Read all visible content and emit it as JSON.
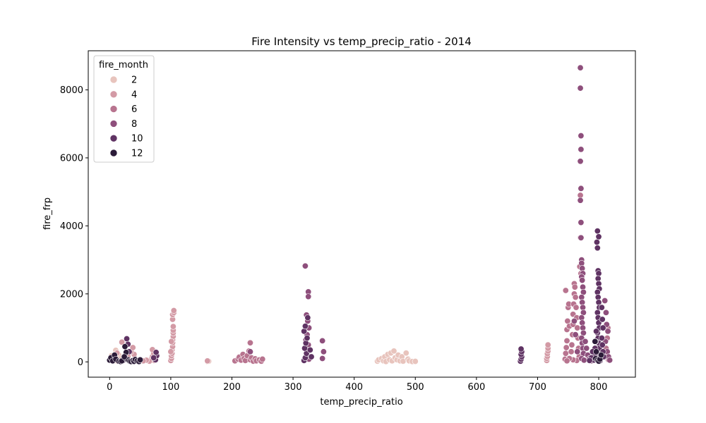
{
  "chart_data": {
    "type": "scatter",
    "title": "Fire Intensity vs temp_precip_ratio - 2014",
    "xlabel": "temp_precip_ratio",
    "ylabel": "fire_frp",
    "xlim": [
      -35,
      860
    ],
    "ylim": [
      -450,
      9150
    ],
    "xticks": [
      0,
      100,
      200,
      300,
      400,
      500,
      600,
      700,
      800
    ],
    "yticks": [
      0,
      2000,
      4000,
      6000,
      8000
    ],
    "grid": false,
    "legend": {
      "title": "fire_month",
      "placement": "top-left",
      "entries": [
        {
          "label": "2",
          "color": "#e8c4bd"
        },
        {
          "label": "4",
          "color": "#d39aa5"
        },
        {
          "label": "6",
          "color": "#b8748f"
        },
        {
          "label": "8",
          "color": "#8e4f7c"
        },
        {
          "label": "10",
          "color": "#5f3363"
        },
        {
          "label": "12",
          "color": "#2b1b38"
        }
      ]
    },
    "series": [
      {
        "name": "2",
        "color": "#e8c4bd",
        "points": [
          [
            438,
            20
          ],
          [
            440,
            60
          ],
          [
            445,
            100
          ],
          [
            448,
            30
          ],
          [
            450,
            150
          ],
          [
            452,
            10
          ],
          [
            455,
            220
          ],
          [
            458,
            60
          ],
          [
            460,
            260
          ],
          [
            462,
            30
          ],
          [
            465,
            320
          ],
          [
            467,
            120
          ],
          [
            470,
            60
          ],
          [
            472,
            200
          ],
          [
            475,
            30
          ],
          [
            478,
            150
          ],
          [
            480,
            20
          ],
          [
            485,
            260
          ],
          [
            488,
            80
          ],
          [
            490,
            30
          ],
          [
            495,
            10
          ],
          [
            500,
            15
          ],
          [
            5,
            120
          ],
          [
            8,
            60
          ],
          [
            12,
            30
          ],
          [
            15,
            200
          ],
          [
            18,
            90
          ],
          [
            22,
            40
          ],
          [
            10,
            340
          ],
          [
            3,
            180
          ],
          [
            160,
            10
          ],
          [
            162,
            20
          ]
        ]
      },
      {
        "name": "4",
        "color": "#d39aa5",
        "points": [
          [
            100,
            40
          ],
          [
            101,
            100
          ],
          [
            101,
            180
          ],
          [
            102,
            250
          ],
          [
            102,
            350
          ],
          [
            103,
            450
          ],
          [
            103,
            560
          ],
          [
            103,
            650
          ],
          [
            104,
            750
          ],
          [
            104,
            850
          ],
          [
            104,
            930
          ],
          [
            104,
            1040
          ],
          [
            103,
            1250
          ],
          [
            103,
            1390
          ],
          [
            105,
            1450
          ],
          [
            105,
            1510
          ],
          [
            100,
            300
          ],
          [
            101,
            600
          ],
          [
            68,
            80
          ],
          [
            70,
            160
          ],
          [
            72,
            250
          ],
          [
            70,
            360
          ],
          [
            73,
            40
          ],
          [
            65,
            20
          ],
          [
            60,
            50
          ],
          [
            55,
            30
          ],
          [
            40,
            220
          ],
          [
            35,
            300
          ],
          [
            38,
            420
          ],
          [
            30,
            160
          ],
          [
            25,
            90
          ],
          [
            20,
            580
          ],
          [
            12,
            260
          ],
          [
            715,
            40
          ],
          [
            715,
            100
          ],
          [
            716,
            160
          ],
          [
            716,
            240
          ],
          [
            717,
            320
          ],
          [
            717,
            400
          ],
          [
            717,
            500
          ],
          [
            160,
            30
          ]
        ]
      },
      {
        "name": "6",
        "color": "#b8748f",
        "points": [
          [
            205,
            30
          ],
          [
            210,
            80
          ],
          [
            212,
            140
          ],
          [
            215,
            50
          ],
          [
            218,
            220
          ],
          [
            220,
            100
          ],
          [
            222,
            40
          ],
          [
            225,
            180
          ],
          [
            228,
            320
          ],
          [
            230,
            60
          ],
          [
            230,
            560
          ],
          [
            232,
            120
          ],
          [
            235,
            20
          ],
          [
            238,
            90
          ],
          [
            240,
            30
          ],
          [
            245,
            60
          ],
          [
            248,
            20
          ],
          [
            250,
            80
          ],
          [
            745,
            80
          ],
          [
            746,
            250
          ],
          [
            747,
            420
          ],
          [
            748,
            620
          ],
          [
            748,
            950
          ],
          [
            749,
            1200
          ],
          [
            750,
            1600
          ],
          [
            751,
            1700
          ],
          [
            746,
            2100
          ],
          [
            752,
            1050
          ],
          [
            755,
            300
          ],
          [
            756,
            500
          ],
          [
            757,
            800
          ],
          [
            758,
            1100
          ],
          [
            758,
            1400
          ],
          [
            759,
            1700
          ],
          [
            760,
            2000
          ],
          [
            760,
            2300
          ],
          [
            761,
            2200
          ],
          [
            762,
            1900
          ],
          [
            763,
            1600
          ],
          [
            764,
            1300
          ],
          [
            765,
            1000
          ],
          [
            766,
            700
          ],
          [
            767,
            400
          ],
          [
            768,
            150
          ],
          [
            769,
            2800
          ],
          [
            770,
            3650
          ],
          [
            770,
            4900
          ],
          [
            771,
            2600
          ],
          [
            764,
            40
          ],
          [
            758,
            60
          ],
          [
            752,
            100
          ],
          [
            748,
            30
          ],
          [
            810,
            150
          ],
          [
            812,
            400
          ],
          [
            814,
            700
          ],
          [
            815,
            1000
          ],
          [
            816,
            60
          ]
        ]
      },
      {
        "name": "8",
        "color": "#8e4f7c",
        "points": [
          [
            770,
            8650
          ],
          [
            770,
            8050
          ],
          [
            771,
            6650
          ],
          [
            771,
            6250
          ],
          [
            770,
            5900
          ],
          [
            771,
            5100
          ],
          [
            770,
            4750
          ],
          [
            771,
            4100
          ],
          [
            771,
            3650
          ],
          [
            772,
            3000
          ],
          [
            772,
            2900
          ],
          [
            773,
            2750
          ],
          [
            774,
            2600
          ],
          [
            772,
            2500
          ],
          [
            773,
            2400
          ],
          [
            774,
            2200
          ],
          [
            775,
            2050
          ],
          [
            772,
            1900
          ],
          [
            773,
            1750
          ],
          [
            774,
            1600
          ],
          [
            775,
            1450
          ],
          [
            772,
            1300
          ],
          [
            773,
            1150
          ],
          [
            774,
            1000
          ],
          [
            775,
            850
          ],
          [
            772,
            700
          ],
          [
            773,
            550
          ],
          [
            774,
            400
          ],
          [
            775,
            250
          ],
          [
            772,
            100
          ],
          [
            776,
            50
          ],
          [
            760,
            1200
          ],
          [
            762,
            800
          ],
          [
            765,
            300
          ],
          [
            778,
            600
          ],
          [
            780,
            400
          ],
          [
            782,
            200
          ],
          [
            785,
            100
          ],
          [
            788,
            30
          ],
          [
            810,
            1800
          ],
          [
            812,
            1450
          ],
          [
            813,
            1100
          ],
          [
            815,
            900
          ],
          [
            811,
            600
          ],
          [
            814,
            300
          ],
          [
            816,
            150
          ],
          [
            818,
            50
          ],
          [
            320,
            2820
          ],
          [
            325,
            2060
          ],
          [
            325,
            1920
          ],
          [
            322,
            1380
          ],
          [
            324,
            1200
          ],
          [
            326,
            1000
          ],
          [
            323,
            800
          ],
          [
            321,
            650
          ],
          [
            325,
            500
          ],
          [
            327,
            350
          ],
          [
            322,
            200
          ],
          [
            326,
            80
          ],
          [
            348,
            620
          ],
          [
            350,
            300
          ],
          [
            348,
            100
          ],
          [
            230,
            300
          ]
        ]
      },
      {
        "name": "10",
        "color": "#5f3363",
        "points": [
          [
            798,
            3850
          ],
          [
            800,
            3680
          ],
          [
            797,
            3520
          ],
          [
            798,
            3350
          ],
          [
            799,
            2680
          ],
          [
            800,
            2600
          ],
          [
            799,
            2450
          ],
          [
            800,
            2300
          ],
          [
            801,
            2150
          ],
          [
            798,
            2050
          ],
          [
            799,
            1900
          ],
          [
            800,
            1750
          ],
          [
            801,
            1600
          ],
          [
            798,
            1450
          ],
          [
            799,
            1300
          ],
          [
            800,
            1150
          ],
          [
            801,
            1000
          ],
          [
            798,
            850
          ],
          [
            799,
            700
          ],
          [
            800,
            550
          ],
          [
            801,
            400
          ],
          [
            798,
            250
          ],
          [
            799,
            100
          ],
          [
            802,
            30
          ],
          [
            805,
            700
          ],
          [
            806,
            500
          ],
          [
            807,
            300
          ],
          [
            808,
            150
          ],
          [
            796,
            900
          ],
          [
            795,
            600
          ],
          [
            794,
            400
          ],
          [
            793,
            200
          ],
          [
            792,
            50
          ],
          [
            790,
            300
          ],
          [
            788,
            120
          ],
          [
            785,
            40
          ],
          [
            805,
            1600
          ],
          [
            806,
            1250
          ],
          [
            807,
            1000
          ],
          [
            672,
            20
          ],
          [
            673,
            80
          ],
          [
            674,
            150
          ],
          [
            673,
            220
          ],
          [
            674,
            300
          ],
          [
            673,
            380
          ],
          [
            318,
            40
          ],
          [
            320,
            120
          ],
          [
            322,
            250
          ],
          [
            319,
            400
          ],
          [
            321,
            550
          ],
          [
            323,
            700
          ],
          [
            318,
            900
          ],
          [
            320,
            1050
          ],
          [
            324,
            1300
          ],
          [
            328,
            350
          ],
          [
            330,
            150
          ],
          [
            75,
            60
          ],
          [
            77,
            180
          ],
          [
            76,
            280
          ],
          [
            72,
            120
          ],
          [
            28,
            680
          ],
          [
            30,
            520
          ],
          [
            32,
            300
          ],
          [
            22,
            40
          ]
        ]
      },
      {
        "name": "12",
        "color": "#2b1b38",
        "points": [
          [
            0,
            50
          ],
          [
            2,
            120
          ],
          [
            5,
            30
          ],
          [
            8,
            200
          ],
          [
            10,
            80
          ],
          [
            15,
            20
          ],
          [
            18,
            10
          ],
          [
            20,
            30
          ],
          [
            25,
            450
          ],
          [
            28,
            80
          ],
          [
            30,
            60
          ],
          [
            33,
            20
          ],
          [
            35,
            10
          ],
          [
            38,
            40
          ],
          [
            40,
            15
          ],
          [
            42,
            70
          ],
          [
            45,
            30
          ],
          [
            48,
            10
          ],
          [
            50,
            60
          ],
          [
            27,
            280
          ],
          [
            24,
            150
          ],
          [
            795,
            100
          ],
          [
            798,
            50
          ],
          [
            800,
            20
          ],
          [
            802,
            80
          ],
          [
            804,
            200
          ],
          [
            796,
            300
          ],
          [
            794,
            600
          ]
        ]
      }
    ]
  }
}
